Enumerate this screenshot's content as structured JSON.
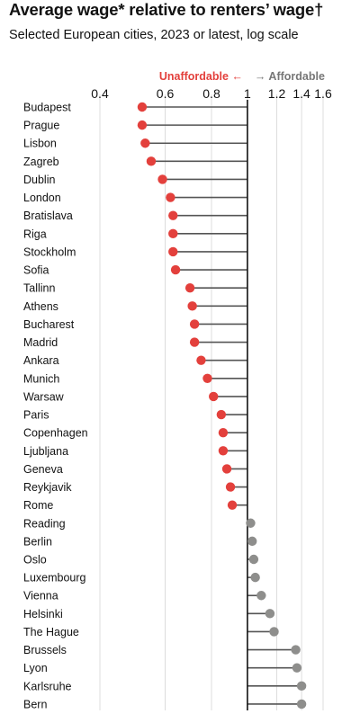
{
  "chart_data": {
    "type": "lollipop",
    "title": "Average wage* relative to renters’ wage†",
    "subtitle": "Selected European cities, 2023 or latest, log scale",
    "direction_labels": {
      "left": "Unaffordable ←",
      "right": "→ Affordable"
    },
    "x_scale": "log",
    "xlim": [
      0.4,
      1.6
    ],
    "baseline": 1,
    "x_ticks": [
      0.4,
      0.6,
      0.8,
      1,
      1.2,
      1.4,
      1.6
    ],
    "x_tick_labels": [
      "0.4",
      "0.6",
      "0.8",
      "1",
      "1.2",
      "1.4",
      "1.6"
    ],
    "grid": true,
    "categories": [
      "Budapest",
      "Prague",
      "Lisbon",
      "Zagreb",
      "Dublin",
      "London",
      "Bratislava",
      "Riga",
      "Stockholm",
      "Sofia",
      "Tallinn",
      "Athens",
      "Bucharest",
      "Madrid",
      "Ankara",
      "Munich",
      "Warsaw",
      "Paris",
      "Copenhagen",
      "Ljubljana",
      "Geneva",
      "Reykjavik",
      "Rome",
      "Reading",
      "Berlin",
      "Oslo",
      "Luxembourg",
      "Vienna",
      "Helsinki",
      "The Hague",
      "Brussels",
      "Lyon",
      "Karlsruhe",
      "Bern"
    ],
    "values": [
      0.52,
      0.52,
      0.53,
      0.55,
      0.59,
      0.62,
      0.63,
      0.63,
      0.63,
      0.64,
      0.7,
      0.71,
      0.72,
      0.72,
      0.75,
      0.78,
      0.81,
      0.85,
      0.86,
      0.86,
      0.88,
      0.9,
      0.91,
      1.02,
      1.03,
      1.04,
      1.05,
      1.09,
      1.15,
      1.18,
      1.35,
      1.36,
      1.4,
      1.4
    ],
    "colors": {
      "below": "#e3403c",
      "above": "#8e8e8c",
      "stem": "#555555",
      "baseline": "#121212",
      "grid": "#dcdcdc"
    }
  }
}
